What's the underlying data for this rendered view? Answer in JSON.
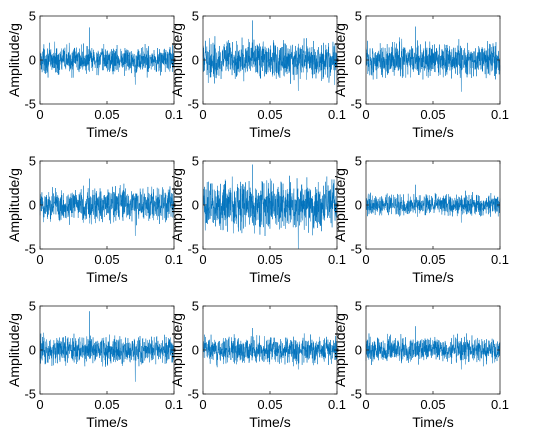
{
  "chart_data": [
    {
      "type": "line",
      "xlabel": "Time/s",
      "ylabel": "Amplitude/g",
      "xlim": [
        0,
        0.1
      ],
      "ylim": [
        -5,
        5
      ],
      "xticks": [
        "0",
        "0.05",
        "0.1"
      ],
      "yticks": [
        "-5",
        "0",
        "5"
      ],
      "grid": false,
      "series": [
        {
          "color": "#0072BD",
          "amplitude": 1.2,
          "max_peak": 3.7,
          "min_peak": -2.8
        }
      ]
    },
    {
      "type": "line",
      "xlabel": "Time/s",
      "ylabel": "Amplitude/g",
      "xlim": [
        0,
        0.1
      ],
      "ylim": [
        -5,
        5
      ],
      "xticks": [
        "0",
        "0.05",
        "0.1"
      ],
      "yticks": [
        "-5",
        "0",
        "5"
      ],
      "grid": false,
      "series": [
        {
          "color": "#0072BD",
          "amplitude": 1.6,
          "max_peak": 4.5,
          "min_peak": -3.5
        }
      ]
    },
    {
      "type": "line",
      "xlabel": "Time/s",
      "ylabel": "Amplitude/g",
      "xlim": [
        0,
        0.1
      ],
      "ylim": [
        -5,
        5
      ],
      "xticks": [
        "0",
        "0.05",
        "0.1"
      ],
      "yticks": [
        "-5",
        "0",
        "5"
      ],
      "grid": false,
      "series": [
        {
          "color": "#0072BD",
          "amplitude": 1.5,
          "max_peak": 3.8,
          "min_peak": -3.6
        }
      ]
    },
    {
      "type": "line",
      "xlabel": "Time/s",
      "ylabel": "Amplitude/g",
      "xlim": [
        0,
        0.1
      ],
      "ylim": [
        -5,
        5
      ],
      "xticks": [
        "0",
        "0.05",
        "0.1"
      ],
      "yticks": [
        "-5",
        "0",
        "5"
      ],
      "grid": false,
      "series": [
        {
          "color": "#0072BD",
          "amplitude": 1.5,
          "max_peak": 3.0,
          "min_peak": -3.5
        }
      ]
    },
    {
      "type": "line",
      "xlabel": "Time/s",
      "ylabel": "Amplitude/g",
      "xlim": [
        0,
        0.1
      ],
      "ylim": [
        -5,
        5
      ],
      "xticks": [
        "0",
        "0.05",
        "0.1"
      ],
      "yticks": [
        "-5",
        "0",
        "5"
      ],
      "grid": false,
      "series": [
        {
          "color": "#0072BD",
          "amplitude": 2.2,
          "max_peak": 4.6,
          "min_peak": -5.0
        }
      ]
    },
    {
      "type": "line",
      "xlabel": "Time/s",
      "ylabel": "Amplitude/g",
      "xlim": [
        0,
        0.1
      ],
      "ylim": [
        -5,
        5
      ],
      "xticks": [
        "0",
        "0.05",
        "0.1"
      ],
      "yticks": [
        "-5",
        "0",
        "5"
      ],
      "grid": false,
      "series": [
        {
          "color": "#0072BD",
          "amplitude": 0.9,
          "max_peak": 2.3,
          "min_peak": -2.0
        }
      ]
    },
    {
      "type": "line",
      "xlabel": "Time/s",
      "ylabel": "Amplitude/g",
      "xlim": [
        0,
        0.1
      ],
      "ylim": [
        -5,
        5
      ],
      "xticks": [
        "0",
        "0.05",
        "0.1"
      ],
      "yticks": [
        "-5",
        "0",
        "5"
      ],
      "grid": false,
      "series": [
        {
          "color": "#0072BD",
          "amplitude": 1.2,
          "max_peak": 4.4,
          "min_peak": -3.6
        }
      ]
    },
    {
      "type": "line",
      "xlabel": "Time/s",
      "ylabel": "Amplitude/g",
      "xlim": [
        0,
        0.1
      ],
      "ylim": [
        -5,
        5
      ],
      "xticks": [
        "0",
        "0.05",
        "0.1"
      ],
      "yticks": [
        "-5",
        "0",
        "5"
      ],
      "grid": false,
      "series": [
        {
          "color": "#0072BD",
          "amplitude": 1.1,
          "max_peak": 2.5,
          "min_peak": -2.2
        }
      ]
    },
    {
      "type": "line",
      "xlabel": "Time/s",
      "ylabel": "Amplitude/g",
      "xlim": [
        0,
        0.1
      ],
      "ylim": [
        -5,
        5
      ],
      "xticks": [
        "0",
        "0.05",
        "0.1"
      ],
      "yticks": [
        "-5",
        "0",
        "5"
      ],
      "grid": false,
      "series": [
        {
          "color": "#0072BD",
          "amplitude": 1.1,
          "max_peak": 2.7,
          "min_peak": -2.2
        }
      ]
    }
  ]
}
